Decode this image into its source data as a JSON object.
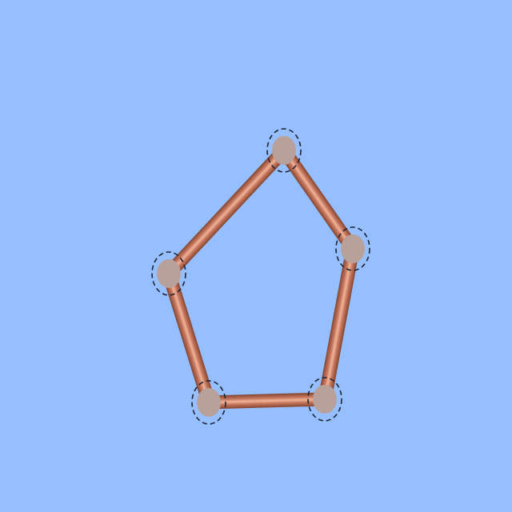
{
  "game": {
    "background_color": "#95bfff",
    "rod_color": "#c8785e",
    "rod_highlight_color": "#f0b49a",
    "rod_shadow_color": "#8a4a35",
    "node_color": "#b9a19b",
    "node_ring_color": "#1e2430"
  }
}
